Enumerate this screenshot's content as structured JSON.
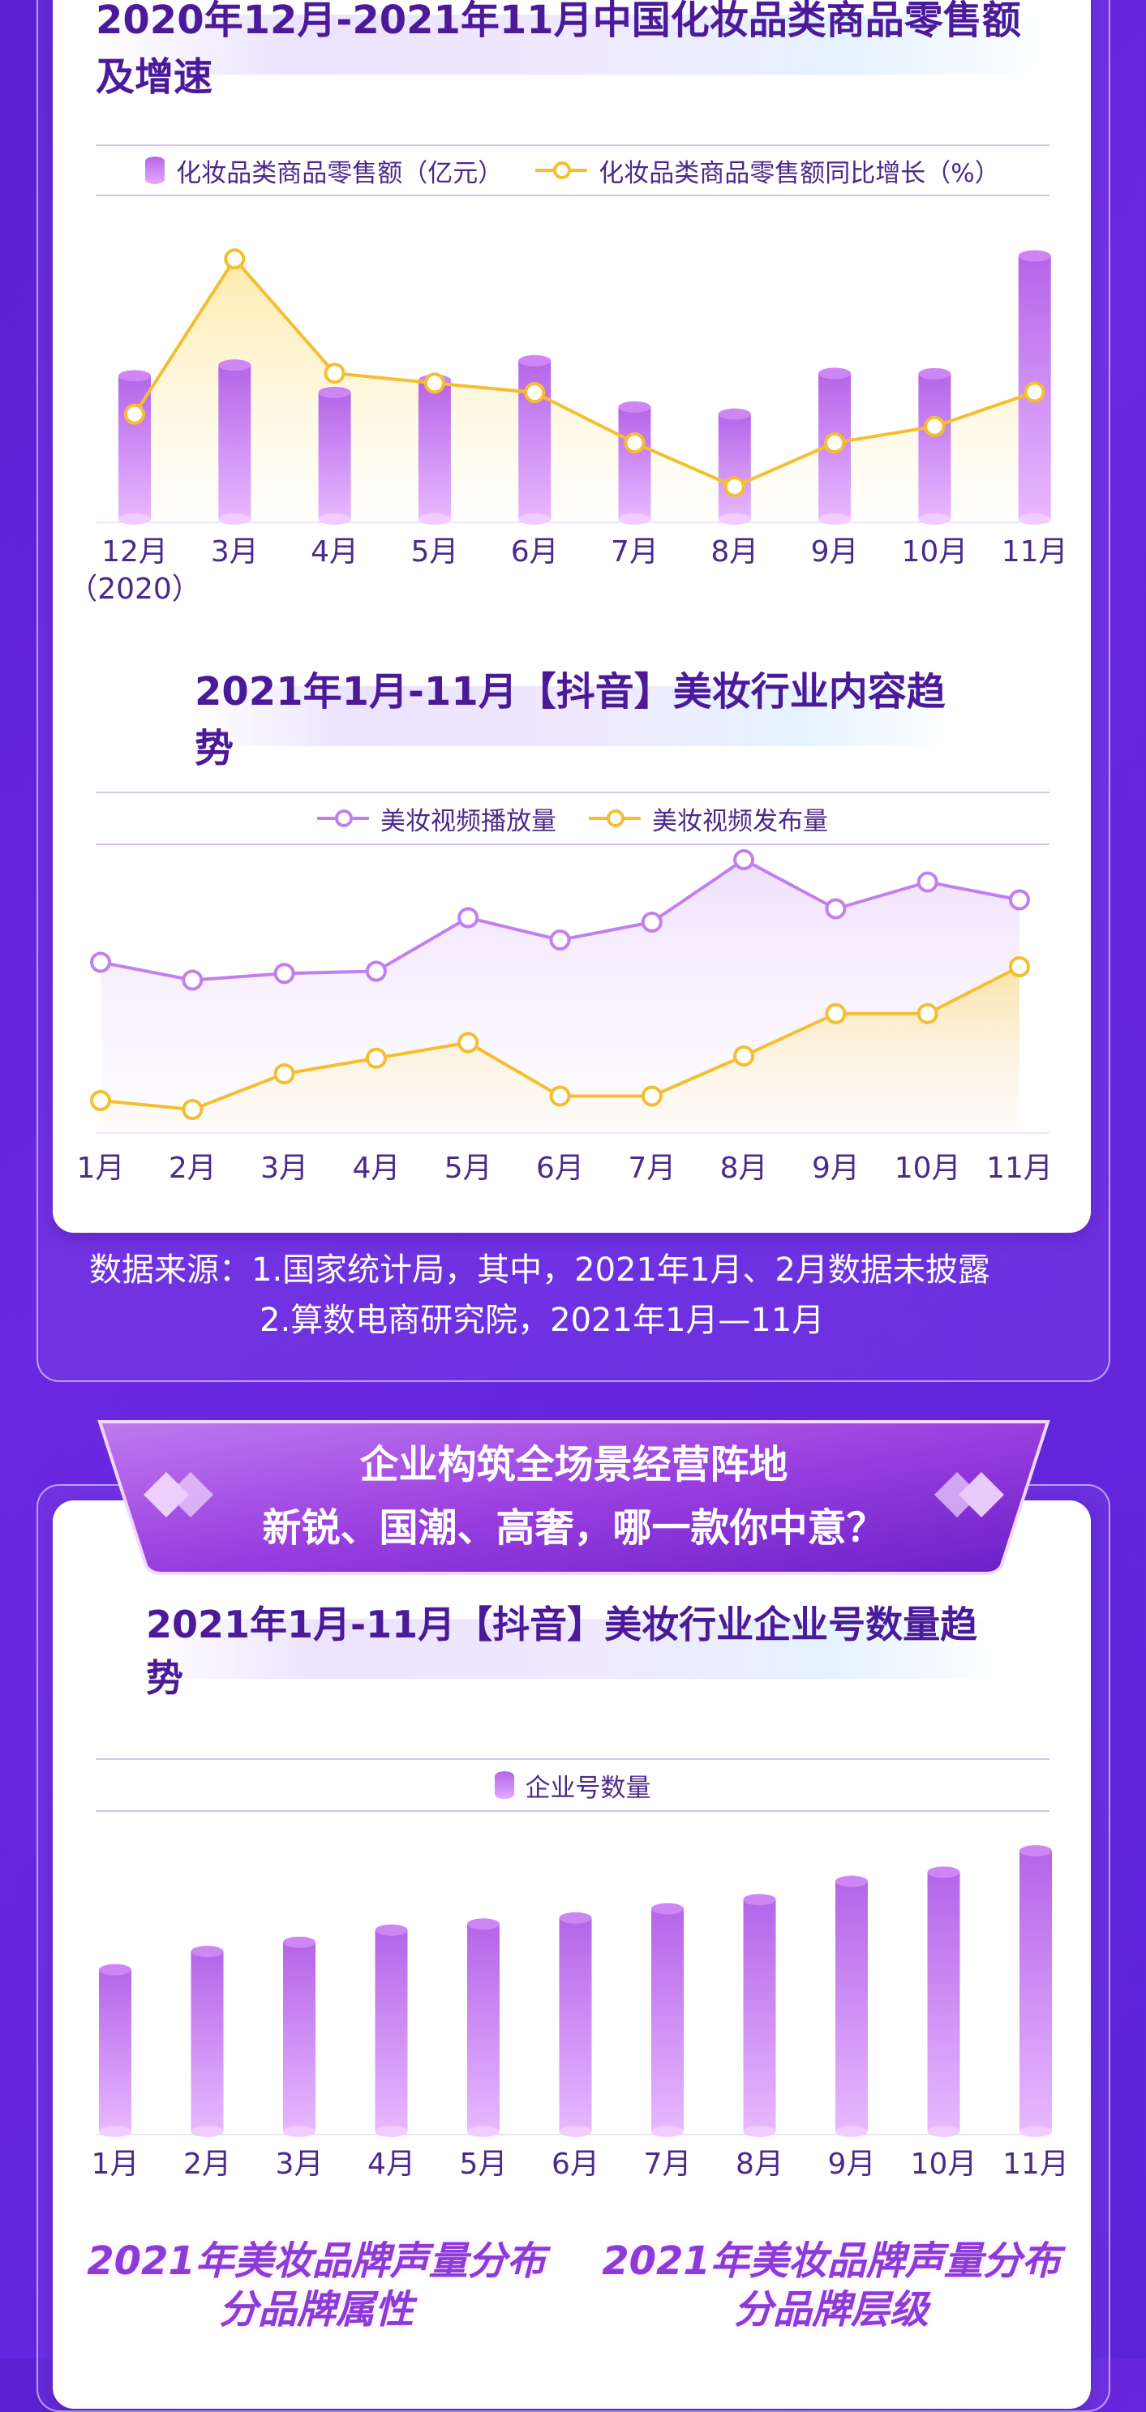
{
  "colors": {
    "purple_bar_top": "#b565e8",
    "purple_bar_bottom": "#e8b8ff",
    "gold_line": "#f5be30",
    "purple_line": "#c27ff0",
    "title_text": "#4a1a9a",
    "background": "#5a1fd0"
  },
  "chart1": {
    "title": "2020年12月-2021年11月中国化妆品类商品零售额及增速",
    "legend_bar": "化妆品类商品零售额（亿元）",
    "legend_line": "化妆品类商品零售额同比增长（%）"
  },
  "chart2": {
    "title": "2021年1月-11月【抖音】美妆行业内容趋势",
    "legend_a": "美妆视频播放量",
    "legend_b": "美妆视频发布量"
  },
  "source": {
    "line1": "数据来源：1.国家统计局，其中，2021年1月、2月数据未披露",
    "line2": "2.算数电商研究院，2021年1月—11月"
  },
  "banner": {
    "line1": "企业构筑全场景经营阵地",
    "line2": "新锐、国潮、高奢，哪一款你中意？"
  },
  "chart3": {
    "title": "2021年1月-11月【抖音】美妆行业企业号数量趋势",
    "legend": "企业号数量"
  },
  "footer": {
    "left_line1": "2021年美妆品牌声量分布",
    "left_line2": "分品牌属性",
    "right_line1": "2021年美妆品牌声量分布",
    "right_line2": "分品牌层级"
  },
  "chart_data": [
    {
      "type": "bar",
      "title": "2020年12月-2021年11月中国化妆品类商品零售额及增速",
      "categories": [
        "12月",
        "3月",
        "4月",
        "5月",
        "6月",
        "7月",
        "8月",
        "9月",
        "10月",
        "11月"
      ],
      "category_notes": [
        "（2020）",
        "",
        "",
        "",
        "",
        "",
        "",
        "",
        "",
        ""
      ],
      "series": [
        {
          "name": "化妆品类商品零售额（亿元）",
          "kind": "bar",
          "values": [
            362,
            389,
            320,
            351,
            400,
            283,
            265,
            368,
            367,
            665
          ]
        },
        {
          "name": "化妆品类商品零售额同比增长（%）",
          "kind": "line",
          "values": [
            9,
            42,
            17.7,
            15.6,
            13.6,
            2.9,
            -6.4,
            2.9,
            6.4,
            13.7
          ]
        }
      ],
      "grid": false,
      "legend_position": "top"
    },
    {
      "type": "line",
      "title": "2021年1月-11月【抖音】美妆行业内容趋势",
      "categories": [
        "1月",
        "2月",
        "3月",
        "4月",
        "5月",
        "6月",
        "7月",
        "8月",
        "9月",
        "10月",
        "11月"
      ],
      "series": [
        {
          "name": "美妆视频播放量",
          "values": [
            91,
            87,
            88.5,
            89,
            101,
            96,
            100,
            114,
            103,
            109,
            105
          ]
        },
        {
          "name": "美妆视频发布量",
          "values": [
            60,
            58,
            66,
            69.5,
            73,
            61,
            61,
            70,
            79.5,
            79.5,
            90
          ]
        }
      ],
      "grid": false,
      "legend_position": "top"
    },
    {
      "type": "bar",
      "title": "2021年1月-11月【抖音】美妆行业企业号数量趋势",
      "categories": [
        "1月",
        "2月",
        "3月",
        "4月",
        "5月",
        "6月",
        "7月",
        "8月",
        "9月",
        "10月",
        "11月"
      ],
      "series": [
        {
          "name": "企业号数量",
          "values": [
            53,
            59,
            62,
            66,
            68,
            70,
            73,
            76,
            82,
            85,
            92
          ]
        }
      ],
      "grid": false,
      "legend_position": "top"
    }
  ]
}
